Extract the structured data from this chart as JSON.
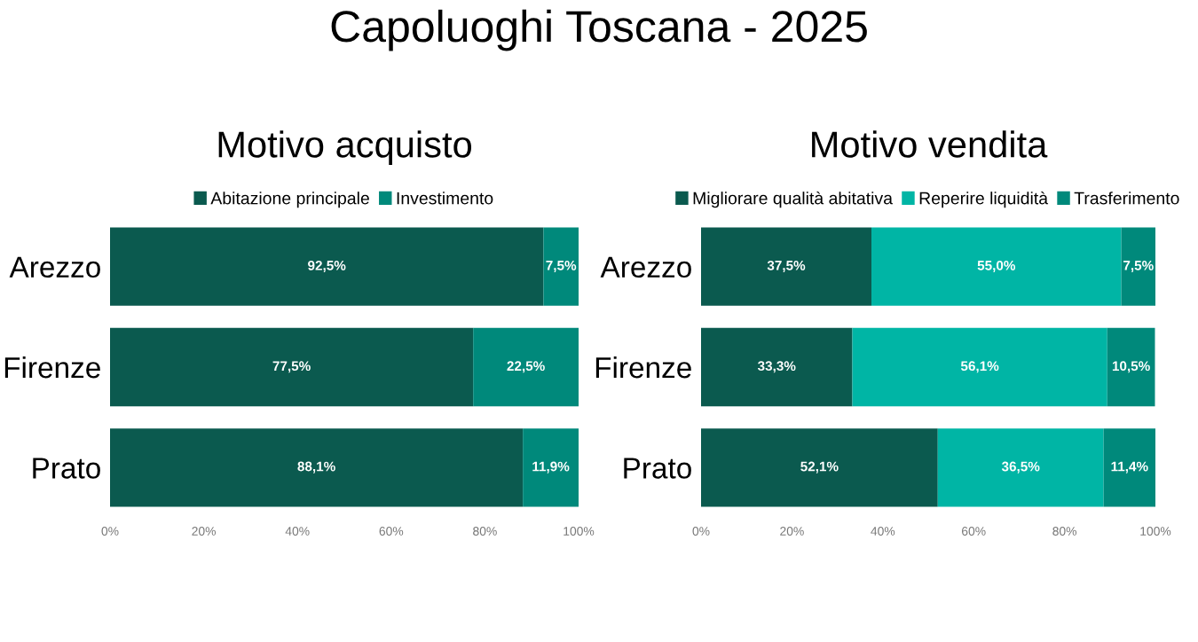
{
  "chart_data": [
    {
      "type": "bar",
      "orientation": "horizontal",
      "stacked": true,
      "title": "Motivo acquisto",
      "annotations": [
        "Capoluoghi Toscana - 2025"
      ],
      "categories": [
        "Arezzo",
        "Firenze",
        "Prato"
      ],
      "legend": "top",
      "grid": false,
      "xlim": [
        0,
        100
      ],
      "xticks": [
        {
          "value": 0,
          "label": "0%"
        },
        {
          "value": 20,
          "label": "20%"
        },
        {
          "value": 40,
          "label": "40%"
        },
        {
          "value": 60,
          "label": "60%"
        },
        {
          "value": 80,
          "label": "80%"
        },
        {
          "value": 100,
          "label": "100%"
        }
      ],
      "series": [
        {
          "name": "Abitazione principale",
          "color": "#0b5a4f",
          "values": [
            92.5,
            77.5,
            88.1
          ],
          "value_labels": [
            "92,5%",
            "77,5%",
            "88,1%"
          ]
        },
        {
          "name": "Investimento",
          "color": "#00897b",
          "values": [
            7.5,
            22.5,
            11.9
          ],
          "value_labels": [
            "7,5%",
            "22,5%",
            "11,9%"
          ]
        }
      ]
    },
    {
      "type": "bar",
      "orientation": "horizontal",
      "stacked": true,
      "title": "Motivo vendita",
      "categories": [
        "Arezzo",
        "Firenze",
        "Prato"
      ],
      "legend": "top",
      "grid": false,
      "xlim": [
        0,
        100
      ],
      "xticks": [
        {
          "value": 0,
          "label": "0%"
        },
        {
          "value": 20,
          "label": "20%"
        },
        {
          "value": 40,
          "label": "40%"
        },
        {
          "value": 60,
          "label": "60%"
        },
        {
          "value": 80,
          "label": "80%"
        },
        {
          "value": 100,
          "label": "100%"
        }
      ],
      "series": [
        {
          "name": "Migliorare qualità abitativa",
          "color": "#0b5a4f",
          "values": [
            37.5,
            33.3,
            52.1
          ],
          "value_labels": [
            "37,5%",
            "33,3%",
            "52,1%"
          ]
        },
        {
          "name": "Reperire liquidità",
          "color": "#00b5a5",
          "values": [
            55.0,
            56.1,
            36.5
          ],
          "value_labels": [
            "55,0%",
            "56,1%",
            "36,5%"
          ]
        },
        {
          "name": "Trasferimento",
          "color": "#00897b",
          "values": [
            7.5,
            10.5,
            11.4
          ],
          "value_labels": [
            "7,5%",
            "10,5%",
            "11,4%"
          ]
        }
      ]
    }
  ]
}
